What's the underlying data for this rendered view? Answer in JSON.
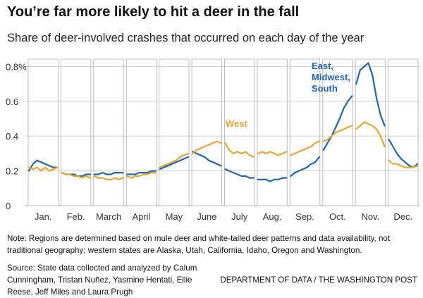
{
  "title": "You’re far more likely to hit a deer in the fall",
  "subtitle": "Share of deer-involved crashes that occurred on each day of the year",
  "note": "Note: Regions are determined based on mule deer and white-tailed deer patterns and data availability, not traditional geography; western states are Alaska, Utah, California, Idaho, Oregon and Washington.",
  "source": "Source: State data collected and analyzed by Calum Cunningham, Tristan Nuñez, Yasmine Hentati, Ellie Reese, Jeff Miles and Laura Prugh",
  "credit": "DEPARTMENT OF DATA / THE WASHINGTON POST",
  "colors": {
    "east": "#2166ac",
    "west": "#e5a532",
    "grid": "#cccccc",
    "panel": "#bdbdbd"
  },
  "chart_data": {
    "type": "line",
    "y_ticks": [
      "0",
      "0.2",
      "0.4",
      "0.6",
      "0.8%"
    ],
    "y_tick_values": [
      0,
      0.2,
      0.4,
      0.6,
      0.8
    ],
    "ylim": [
      0,
      0.85
    ],
    "grid": true,
    "months": [
      "Jan.",
      "Feb.",
      "March",
      "April",
      "May",
      "June",
      "July",
      "Aug.",
      "Sep.",
      "Oct.",
      "Nov.",
      "Dec."
    ],
    "series": [
      {
        "name": "East, Midwest, South",
        "label_lines": [
          "East,",
          "Midwest,",
          "South"
        ],
        "monthly_values": [
          [
            0.2,
            0.24,
            0.26,
            0.25,
            0.24,
            0.23,
            0.22,
            0.22
          ],
          [
            0.19,
            0.18,
            0.18,
            0.18,
            0.17,
            0.17,
            0.18,
            0.18
          ],
          [
            0.18,
            0.18,
            0.19,
            0.18,
            0.18,
            0.19,
            0.19,
            0.19
          ],
          [
            0.18,
            0.18,
            0.18,
            0.19,
            0.19,
            0.19,
            0.2,
            0.2
          ],
          [
            0.21,
            0.22,
            0.23,
            0.24,
            0.25,
            0.26,
            0.27,
            0.28
          ],
          [
            0.31,
            0.3,
            0.29,
            0.28,
            0.26,
            0.25,
            0.24,
            0.23
          ],
          [
            0.21,
            0.2,
            0.19,
            0.18,
            0.17,
            0.17,
            0.16,
            0.16
          ],
          [
            0.15,
            0.15,
            0.15,
            0.14,
            0.15,
            0.15,
            0.16,
            0.16
          ],
          [
            0.17,
            0.19,
            0.2,
            0.21,
            0.22,
            0.24,
            0.25,
            0.28
          ],
          [
            0.32,
            0.36,
            0.4,
            0.45,
            0.5,
            0.56,
            0.6,
            0.63
          ],
          [
            0.7,
            0.78,
            0.8,
            0.82,
            0.75,
            0.62,
            0.52,
            0.46
          ],
          [
            0.38,
            0.34,
            0.3,
            0.27,
            0.25,
            0.23,
            0.22,
            0.24
          ]
        ]
      },
      {
        "name": "West",
        "label_lines": [
          "West"
        ],
        "monthly_values": [
          [
            0.22,
            0.21,
            0.22,
            0.2,
            0.22,
            0.2,
            0.21,
            0.22
          ],
          [
            0.19,
            0.18,
            0.18,
            0.17,
            0.17,
            0.16,
            0.17,
            0.16
          ],
          [
            0.17,
            0.16,
            0.16,
            0.15,
            0.15,
            0.16,
            0.15,
            0.16
          ],
          [
            0.17,
            0.16,
            0.17,
            0.17,
            0.18,
            0.18,
            0.19,
            0.19
          ],
          [
            0.22,
            0.23,
            0.24,
            0.25,
            0.26,
            0.28,
            0.29,
            0.3
          ],
          [
            0.3,
            0.32,
            0.33,
            0.34,
            0.35,
            0.36,
            0.37,
            0.36
          ],
          [
            0.36,
            0.32,
            0.3,
            0.31,
            0.3,
            0.31,
            0.29,
            0.28
          ],
          [
            0.3,
            0.31,
            0.3,
            0.31,
            0.3,
            0.29,
            0.3,
            0.31
          ],
          [
            0.29,
            0.3,
            0.31,
            0.32,
            0.33,
            0.34,
            0.36,
            0.37
          ],
          [
            0.37,
            0.38,
            0.4,
            0.42,
            0.43,
            0.44,
            0.45,
            0.46
          ],
          [
            0.44,
            0.46,
            0.48,
            0.47,
            0.46,
            0.44,
            0.4,
            0.34
          ],
          [
            0.26,
            0.24,
            0.24,
            0.23,
            0.22,
            0.22,
            0.22,
            0.23
          ]
        ]
      }
    ]
  }
}
